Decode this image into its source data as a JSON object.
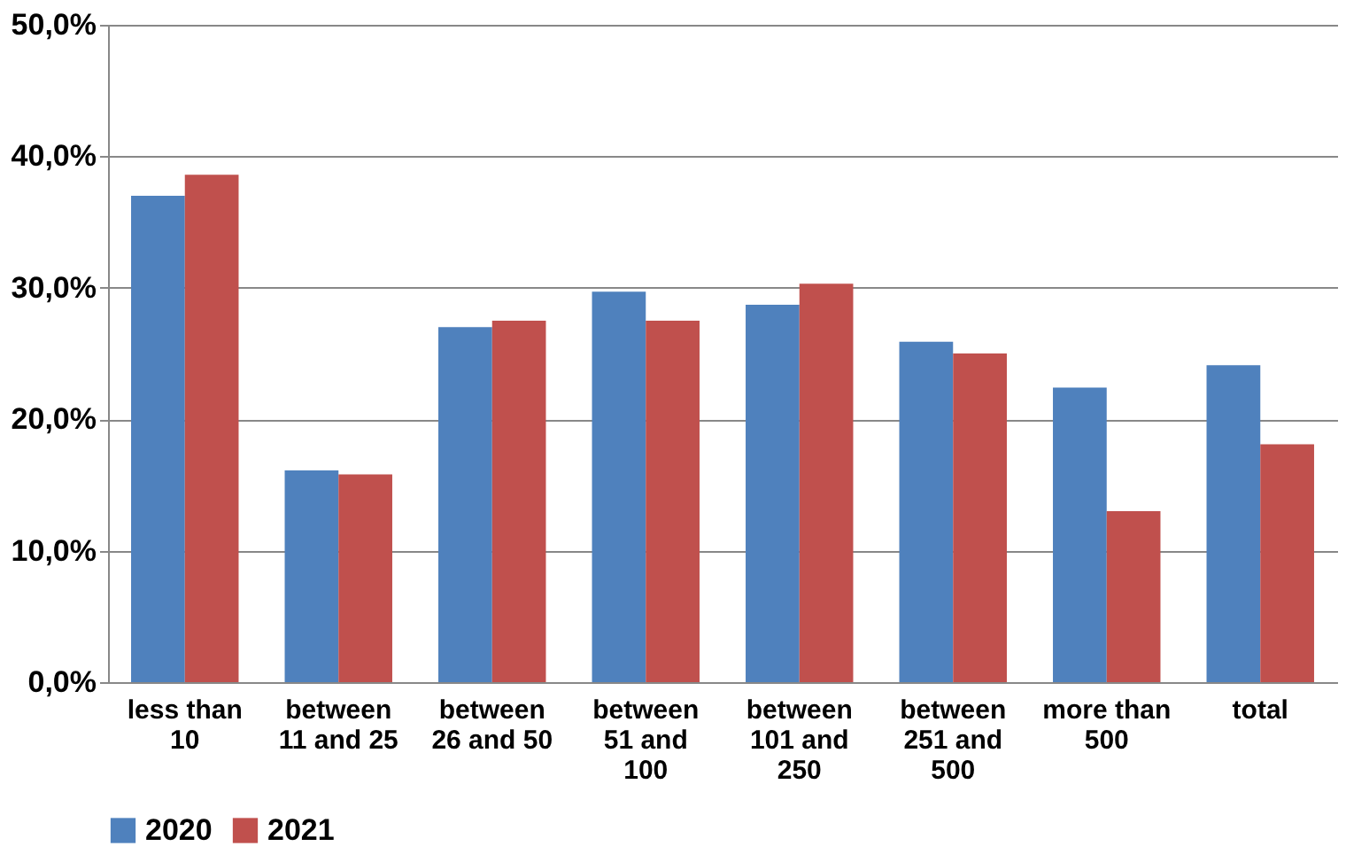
{
  "chart_data": {
    "type": "bar",
    "categories": [
      "less than 10",
      "between 11 and 25",
      "between 26 and 50",
      "between 51 and 100",
      "between 101 and 250",
      "between 251 and 500",
      "more than 500",
      "total"
    ],
    "series": [
      {
        "name": "2020",
        "color": "#4f81bd",
        "values": [
          37.0,
          16.1,
          27.0,
          29.7,
          28.7,
          25.9,
          22.4,
          24.1
        ]
      },
      {
        "name": "2021",
        "color": "#c0504d",
        "values": [
          38.6,
          15.8,
          27.5,
          27.5,
          30.3,
          25.0,
          13.0,
          18.1
        ]
      }
    ],
    "ylim": [
      0,
      50
    ],
    "yticks": [
      {
        "value": 0,
        "label": "0,0%"
      },
      {
        "value": 10,
        "label": "10,0%"
      },
      {
        "value": 20,
        "label": "20,0%"
      },
      {
        "value": 30,
        "label": "30,0%"
      },
      {
        "value": 40,
        "label": "40,0%"
      },
      {
        "value": 50,
        "label": "50,0%"
      }
    ],
    "grid": "y",
    "legend": "bottom"
  }
}
